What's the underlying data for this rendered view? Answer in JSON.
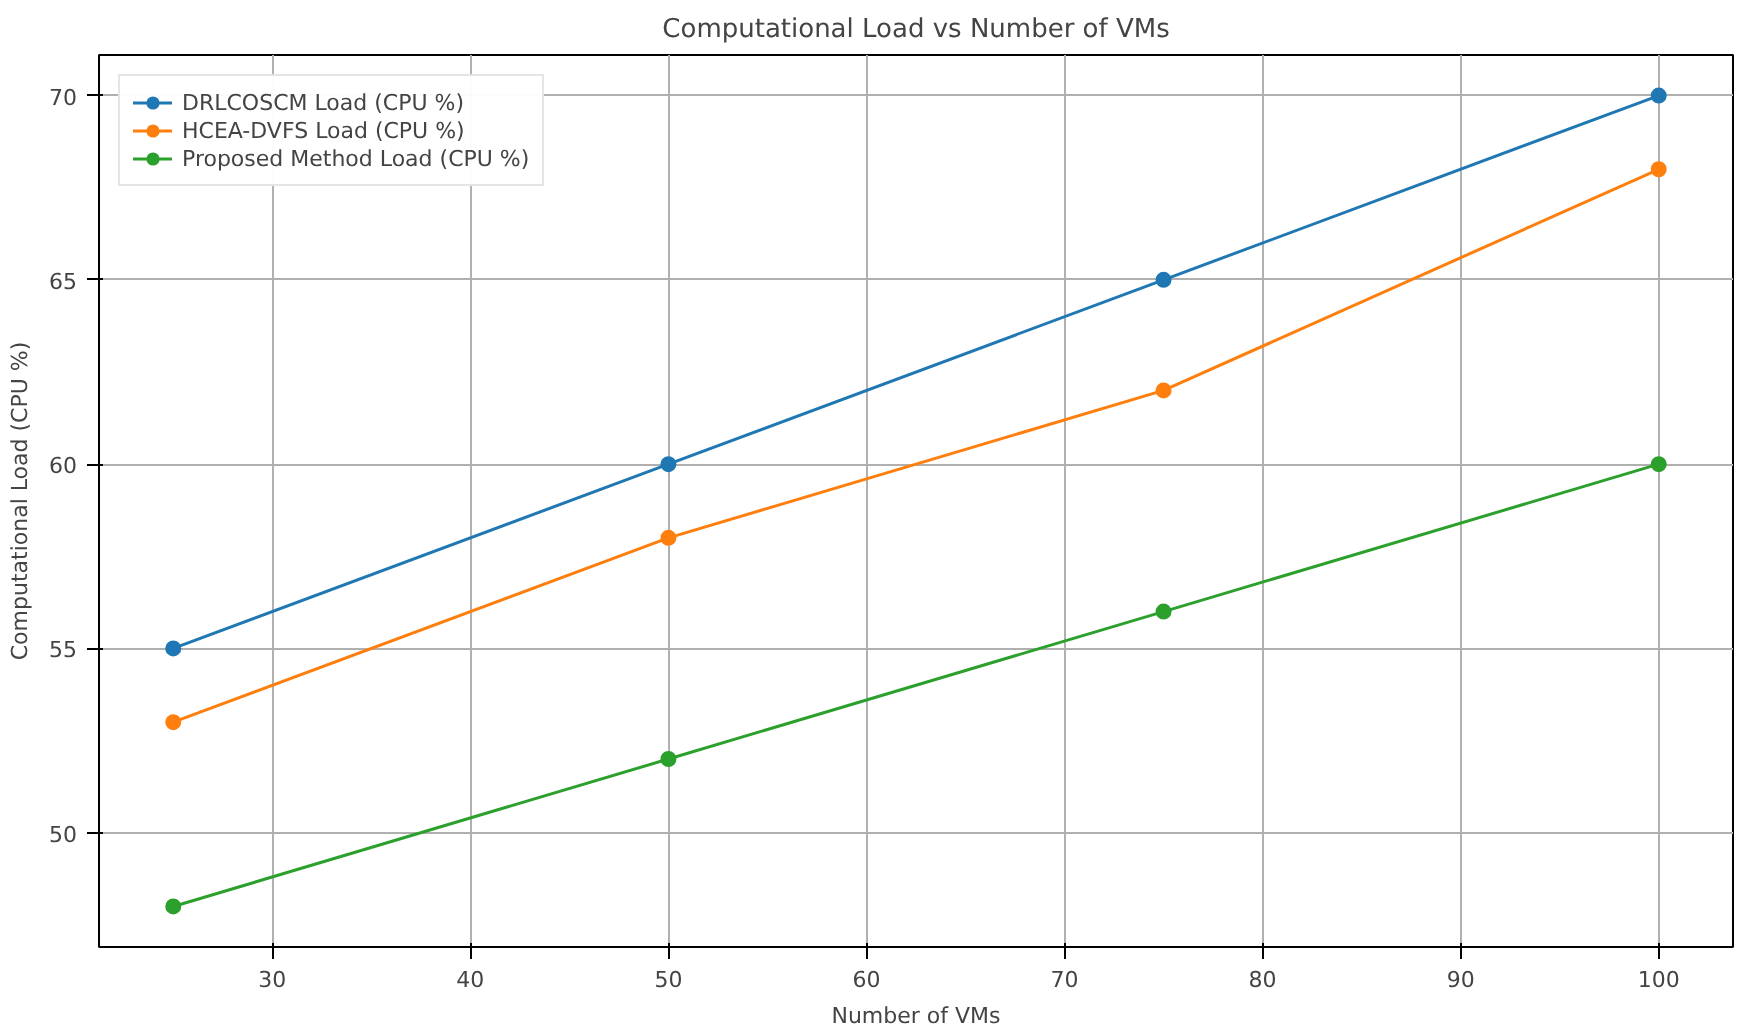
{
  "chart_data": {
    "type": "line",
    "title": "Computational Load vs Number of VMs",
    "xlabel": "Number of VMs",
    "ylabel": "Computational Load (CPU %)",
    "x": [
      25,
      50,
      75,
      100
    ],
    "series": [
      {
        "name": "DRLCOSCM Load (CPU %)",
        "color": "#1f77b4",
        "values": [
          55,
          60,
          65,
          70
        ]
      },
      {
        "name": "HCEA-DVFS Load (CPU %)",
        "color": "#ff7f0e",
        "values": [
          53,
          58,
          62,
          68
        ]
      },
      {
        "name": "Proposed Method Load (CPU %)",
        "color": "#2ca02c",
        "values": [
          48,
          52,
          56,
          60
        ]
      }
    ],
    "xlim": [
      21.25,
      103.75
    ],
    "ylim": [
      46.9,
      71.1
    ],
    "xticks": [
      30,
      40,
      50,
      60,
      70,
      80,
      90,
      100
    ],
    "yticks": [
      50,
      55,
      60,
      65,
      70
    ],
    "grid": true,
    "legend": "top left",
    "marker": "circle",
    "line_style": "solid"
  }
}
